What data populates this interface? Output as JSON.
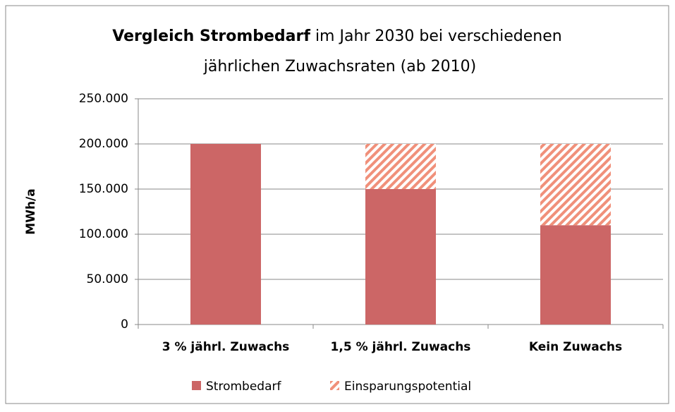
{
  "chart_data": {
    "type": "stacked_bar",
    "title": {
      "bold": "Vergleich Strombedarf",
      "rest": "im Jahr 2030 bei verschiedenen",
      "line2": "jährlichen Zuwachsraten (ab 2010)"
    },
    "ylabel": "MWh/a",
    "categories": [
      "3 % jährl. Zuwachs",
      "1,5 % jährl. Zuwachs",
      "Kein Zuwachs"
    ],
    "series": [
      {
        "name": "Strombedarf",
        "color": "#cc6666",
        "pattern": "solid",
        "values": [
          200000,
          150000,
          110000
        ]
      },
      {
        "name": "Einsparungspotential",
        "color": "#f0907a",
        "pattern": "hatch",
        "values": [
          0,
          50000,
          90000
        ]
      }
    ],
    "ylim": [
      0,
      250000
    ],
    "yticks": [
      0,
      {
        "value": 50000,
        "label": "50.000"
      },
      {
        "value": 100000,
        "label": "100.000"
      },
      {
        "value": 150000,
        "label": "150.000"
      },
      {
        "value": 200000,
        "label": "200.000"
      },
      {
        "value": 250000,
        "label": "250.000"
      }
    ],
    "grid": true,
    "legend": "bottom"
  }
}
